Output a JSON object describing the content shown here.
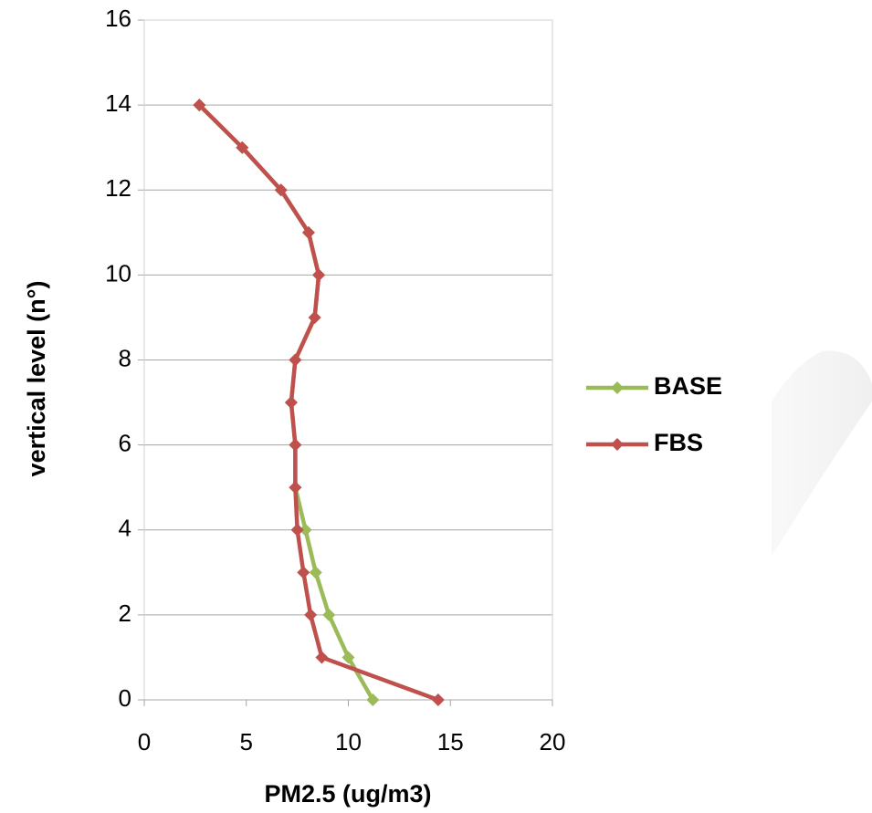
{
  "chart_data": {
    "type": "line",
    "x_label": "PM2.5 (ug/m3)",
    "y_label": "vertical level (n°)",
    "xlim": [
      0,
      20
    ],
    "xticks": [
      0,
      5,
      10,
      15,
      20
    ],
    "ylim": [
      0,
      16
    ],
    "yticks": [
      0,
      2,
      4,
      6,
      8,
      10,
      12,
      14,
      16
    ],
    "grid": true,
    "legend": "right",
    "series": [
      {
        "name": "BASE",
        "color": "#9bbb59",
        "x": [
          11.2,
          10.0,
          9.05,
          8.4,
          7.9,
          7.4,
          7.4,
          7.2,
          7.4,
          8.35,
          8.55,
          8.05,
          6.7,
          4.8,
          2.7
        ],
        "y": [
          0,
          1,
          2,
          3,
          4,
          5,
          6,
          7,
          8,
          9,
          10,
          11,
          12,
          13,
          14
        ]
      },
      {
        "name": "FBS",
        "color": "#c0504d",
        "x": [
          14.4,
          8.7,
          8.15,
          7.8,
          7.5,
          7.4,
          7.4,
          7.2,
          7.4,
          8.35,
          8.55,
          8.05,
          6.7,
          4.8,
          2.7
        ],
        "y": [
          0,
          1,
          2,
          3,
          4,
          5,
          6,
          7,
          8,
          9,
          10,
          11,
          12,
          13,
          14
        ]
      }
    ]
  }
}
